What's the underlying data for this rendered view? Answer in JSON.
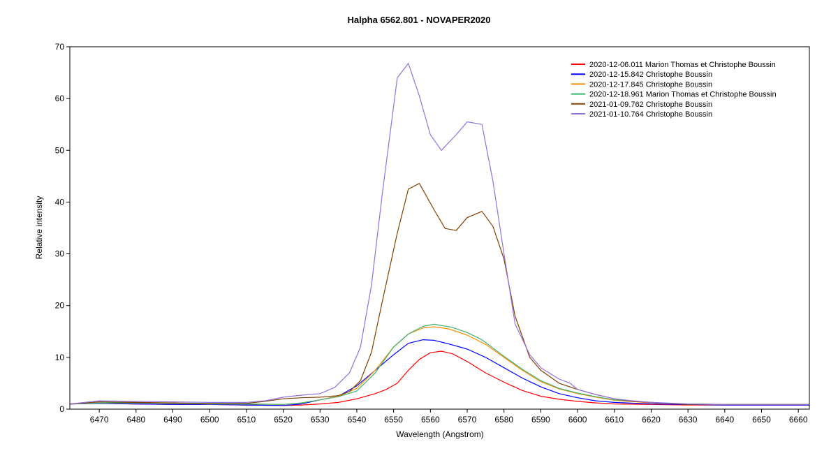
{
  "chart_data": {
    "type": "line",
    "title": "Halpha 6562.801 - NOVAPER2020",
    "xlabel": "Wavelength (Angstrom)",
    "ylabel": "Relative intensity",
    "xlim": [
      6462,
      6663
    ],
    "ylim": [
      0,
      70
    ],
    "x_ticks": [
      6470,
      6480,
      6490,
      6500,
      6510,
      6520,
      6530,
      6540,
      6550,
      6560,
      6570,
      6580,
      6590,
      6600,
      6610,
      6620,
      6630,
      6640,
      6650,
      6660
    ],
    "y_ticks": [
      0,
      10,
      20,
      30,
      40,
      50,
      60,
      70
    ],
    "grid": false,
    "legend_position": "top-right",
    "series": [
      {
        "name": "2020-12-06.011  Marion Thomas et Christophe Boussin",
        "color": "#ff0000",
        "x": [
          6462,
          6470,
          6480,
          6490,
          6500,
          6510,
          6520,
          6525,
          6530,
          6535,
          6540,
          6545,
          6548,
          6551,
          6554,
          6557,
          6560,
          6563,
          6566,
          6570,
          6575,
          6580,
          6585,
          6590,
          6595,
          6600,
          6605,
          6610,
          6620,
          6630,
          6640,
          6650,
          6663
        ],
        "y": [
          1.0,
          1.1,
          1.0,
          0.9,
          0.9,
          0.8,
          0.7,
          0.8,
          1.0,
          1.3,
          2.0,
          3.0,
          3.8,
          5.0,
          7.5,
          9.6,
          10.9,
          11.2,
          10.7,
          9.2,
          7.0,
          5.2,
          3.6,
          2.5,
          1.9,
          1.5,
          1.2,
          1.0,
          0.9,
          0.8,
          0.8,
          0.8,
          0.8
        ]
      },
      {
        "name": "2020-12-15.842  Christophe Boussin",
        "color": "#0000ff",
        "x": [
          6462,
          6470,
          6480,
          6490,
          6500,
          6510,
          6520,
          6525,
          6530,
          6535,
          6540,
          6545,
          6550,
          6554,
          6558,
          6561,
          6565,
          6570,
          6575,
          6580,
          6585,
          6590,
          6595,
          6600,
          6605,
          6610,
          6620,
          6630,
          6640,
          6650,
          6663
        ],
        "y": [
          1.0,
          1.1,
          1.0,
          0.9,
          0.9,
          0.8,
          0.7,
          1.0,
          1.8,
          2.5,
          4.5,
          7.5,
          10.5,
          12.7,
          13.4,
          13.3,
          12.6,
          11.6,
          10.0,
          8.0,
          6.0,
          4.3,
          3.0,
          2.2,
          1.6,
          1.3,
          1.0,
          0.9,
          0.8,
          0.8,
          0.8
        ]
      },
      {
        "name": "2020-12-17.845  Christophe Boussin",
        "color": "#ff8c00",
        "x": [
          6462,
          6470,
          6480,
          6490,
          6500,
          6510,
          6520,
          6525,
          6530,
          6535,
          6540,
          6545,
          6550,
          6554,
          6558,
          6561,
          6565,
          6570,
          6575,
          6580,
          6585,
          6590,
          6595,
          6600,
          6605,
          6610,
          6620,
          6630,
          6640,
          6650,
          6663
        ],
        "y": [
          1.0,
          1.2,
          1.2,
          1.1,
          1.0,
          1.0,
          0.9,
          1.2,
          1.8,
          2.5,
          4.0,
          7.5,
          12.0,
          14.5,
          15.7,
          15.9,
          15.5,
          14.3,
          12.5,
          10.0,
          7.5,
          5.3,
          3.9,
          3.0,
          2.3,
          1.7,
          1.2,
          1.0,
          0.9,
          0.9,
          0.9
        ]
      },
      {
        "name": "2020-12-18.961  Marion Thomas et Christophe Boussin",
        "color": "#3cb371",
        "x": [
          6462,
          6470,
          6480,
          6490,
          6500,
          6510,
          6520,
          6525,
          6530,
          6535,
          6540,
          6545,
          6550,
          6554,
          6558,
          6561,
          6566,
          6570,
          6574,
          6580,
          6585,
          6590,
          6595,
          6600,
          6605,
          6610,
          6620,
          6630,
          6640,
          6650,
          6663
        ],
        "y": [
          1.0,
          1.2,
          1.2,
          1.1,
          1.0,
          1.0,
          0.9,
          1.2,
          1.8,
          2.4,
          3.5,
          7.0,
          12.0,
          14.5,
          16.0,
          16.4,
          15.8,
          14.8,
          13.4,
          10.2,
          7.7,
          5.5,
          4.0,
          3.1,
          2.4,
          1.8,
          1.3,
          1.0,
          0.9,
          0.9,
          0.9
        ]
      },
      {
        "name": "2021-01-09.762  Christophe Boussin",
        "color": "#804000",
        "x": [
          6462,
          6470,
          6480,
          6490,
          6500,
          6510,
          6515,
          6520,
          6525,
          6530,
          6535,
          6538,
          6541,
          6544,
          6547,
          6551,
          6554,
          6557,
          6561,
          6564,
          6567,
          6570,
          6574,
          6577,
          6580,
          6583,
          6587,
          6590,
          6595,
          6600,
          6605,
          6610,
          6615,
          6620,
          6630,
          6640,
          6650,
          6663
        ],
        "y": [
          1.0,
          1.4,
          1.3,
          1.2,
          1.1,
          1.1,
          1.5,
          2.0,
          2.2,
          2.3,
          2.6,
          3.4,
          5.5,
          11.0,
          21.0,
          34.0,
          42.5,
          43.6,
          38.5,
          34.9,
          34.5,
          37.0,
          38.2,
          35.3,
          29.0,
          18.0,
          10.0,
          7.5,
          5.0,
          3.8,
          2.8,
          2.0,
          1.5,
          1.3,
          0.9,
          0.9,
          0.9,
          0.9
        ]
      },
      {
        "name": "2021-01-10.764  Christophe Boussin",
        "color": "#9370db",
        "x": [
          6462,
          6470,
          6480,
          6490,
          6500,
          6510,
          6515,
          6520,
          6525,
          6530,
          6534,
          6538,
          6541,
          6544,
          6547,
          6551,
          6554,
          6557,
          6560,
          6563,
          6567,
          6570,
          6574,
          6577,
          6580,
          6583,
          6587,
          6590,
          6595,
          6598,
          6600,
          6605,
          6610,
          6615,
          6620,
          6630,
          6640,
          6650,
          6663
        ],
        "y": [
          1.0,
          1.6,
          1.5,
          1.4,
          1.3,
          1.3,
          1.6,
          2.3,
          2.7,
          3.0,
          4.2,
          7.0,
          12.0,
          24.0,
          42.0,
          64.0,
          66.8,
          60.5,
          53.0,
          50.0,
          53.0,
          55.5,
          55.0,
          44.0,
          30.0,
          16.5,
          10.5,
          8.0,
          5.8,
          5.0,
          3.8,
          2.8,
          2.0,
          1.6,
          1.3,
          1.0,
          0.9,
          0.9,
          0.9
        ]
      }
    ]
  }
}
